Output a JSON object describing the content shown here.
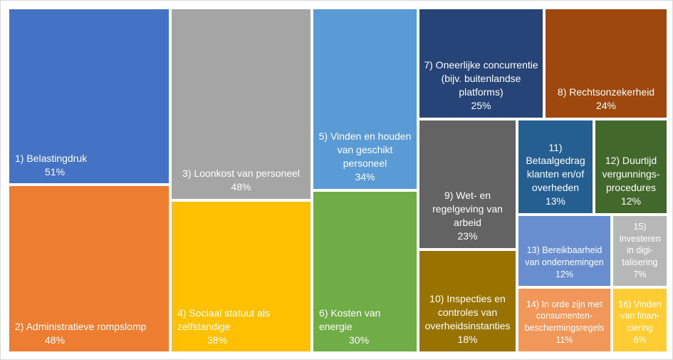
{
  "chart_data": {
    "type": "treemap",
    "items": [
      {
        "label": "1) Belastingdruk",
        "value": 51,
        "value_label": "51%",
        "color": "#4472C4"
      },
      {
        "label": "2) Administratieve rompslomp",
        "value": 48,
        "value_label": "48%",
        "color": "#ED7D31"
      },
      {
        "label": "3) Loonkost van personeel",
        "value": 48,
        "value_label": "48%",
        "color": "#A5A5A5"
      },
      {
        "label": "4) Sociaal statuut als\nzelfstandige",
        "value": 38,
        "value_label": "38%",
        "color": "#FFC000"
      },
      {
        "label": "5) Vinden en houden\nvan geschikt\npersoneel",
        "value": 34,
        "value_label": "34%",
        "color": "#5B9BD5"
      },
      {
        "label": "6) Kosten van\nenergie",
        "value": 30,
        "value_label": "30%",
        "color": "#70AD47"
      },
      {
        "label": "7) Oneerlijke concurrentie\n(bijv. buitenlandse\nplatforms)",
        "value": 25,
        "value_label": "25%",
        "color": "#264478"
      },
      {
        "label": "8) Rechtsonzekerheid",
        "value": 24,
        "value_label": "24%",
        "color": "#9E480E"
      },
      {
        "label": "9) Wet- en\nregelgeving van\narbeid",
        "value": 23,
        "value_label": "23%",
        "color": "#636363"
      },
      {
        "label": "10) Inspecties en\ncontroles van\noverheidsinstanties",
        "value": 18,
        "value_label": "18%",
        "color": "#997300"
      },
      {
        "label": "11)\nBetaalgedrag\nklanten en/of\noverheden",
        "value": 13,
        "value_label": "13%",
        "color": "#255E91"
      },
      {
        "label": "12) Duurtijd\nvergunnings-\nprocedures",
        "value": 12,
        "value_label": "12%",
        "color": "#43682B"
      },
      {
        "label": "13) Bereikbaarheid\nvan ondernemingen",
        "value": 12,
        "value_label": "12%",
        "color": "#698ED0"
      },
      {
        "label": "14) In orde zijn met\nconsumenten-\nbeschermingsregels",
        "value": 11,
        "value_label": "11%",
        "color": "#F1975A"
      },
      {
        "label": "15)\nInvesteren\nin digi-\ntalisering",
        "value": 7,
        "value_label": "7%",
        "color": "#B7B7B7"
      },
      {
        "label": "16) Vinden\nvan finan-\nciering",
        "value": 6,
        "value_label": "6%",
        "color": "#FFCD33"
      }
    ]
  }
}
